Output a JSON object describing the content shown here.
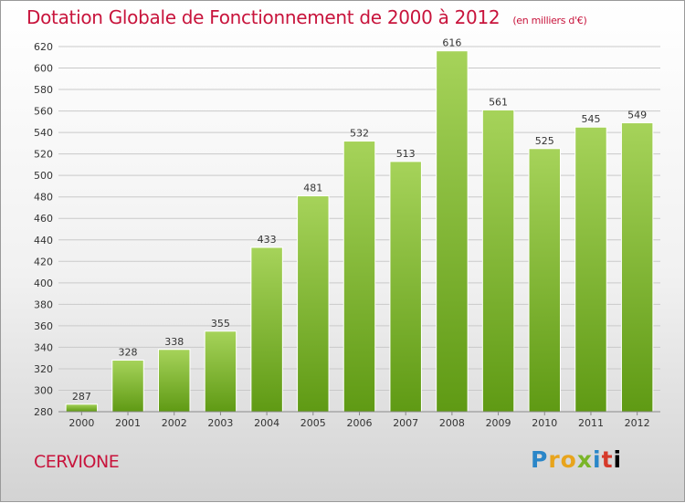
{
  "chart_data": {
    "type": "bar",
    "title": "Dotation Globale de Fonctionnement de 2000 à 2012",
    "unit_label": "(en milliers d'€)",
    "categories": [
      "2000",
      "2001",
      "2002",
      "2003",
      "2004",
      "2005",
      "2006",
      "2007",
      "2008",
      "2009",
      "2010",
      "2011",
      "2012"
    ],
    "values": [
      287,
      328,
      338,
      355,
      433,
      481,
      532,
      513,
      616,
      561,
      525,
      545,
      549
    ],
    "ylim": [
      280,
      620
    ],
    "ytick_step": 20,
    "grid": true,
    "bar_color": "#7ab528"
  },
  "footer": {
    "commune": "CERVIONE",
    "logo_letters": [
      "P",
      "r",
      "o",
      "x",
      "i",
      "t",
      "i"
    ]
  }
}
